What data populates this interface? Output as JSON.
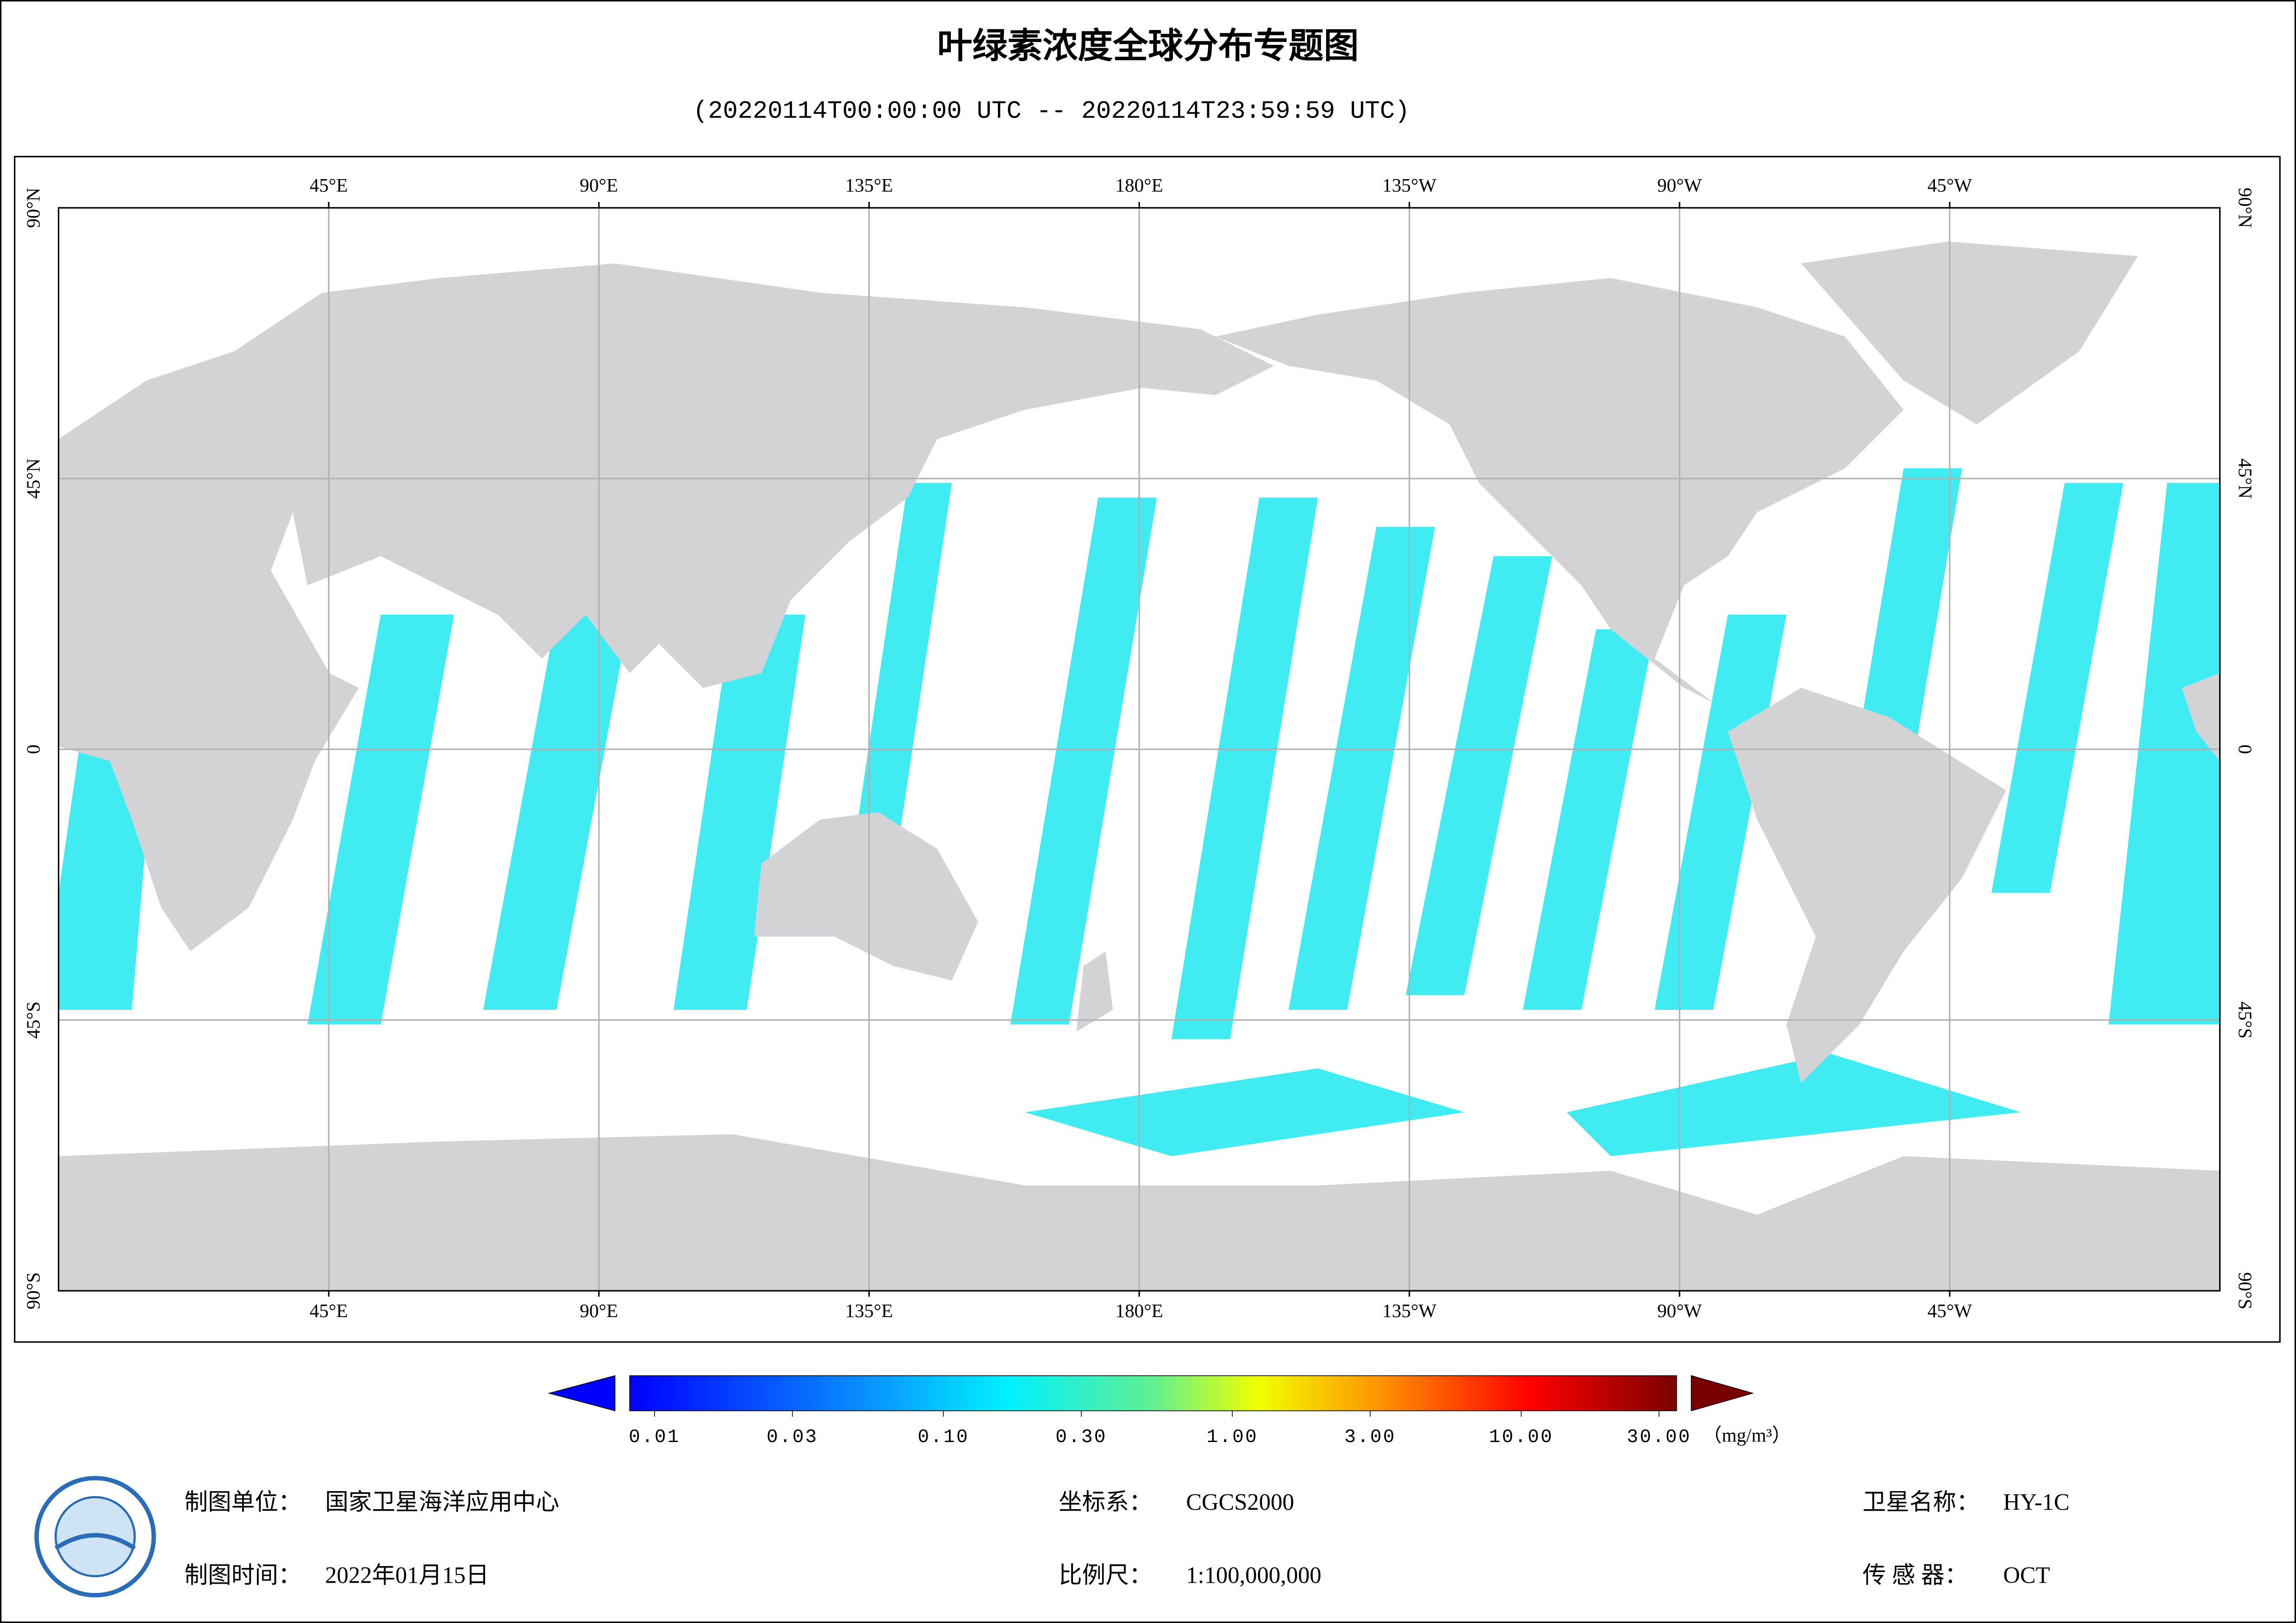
{
  "title": "叶绿素浓度全球分布专题图",
  "subtitle": "(20220114T00:00:00 UTC -- 20220114T23:59:59 UTC)",
  "map": {
    "lon_ticks": [
      {
        "value": 45,
        "label": "45°E"
      },
      {
        "value": 90,
        "label": "90°E"
      },
      {
        "value": 135,
        "label": "135°E"
      },
      {
        "value": 180,
        "label": "180°E"
      },
      {
        "value": -135,
        "label": "135°W"
      },
      {
        "value": -90,
        "label": "90°W"
      },
      {
        "value": -45,
        "label": "45°W"
      }
    ],
    "lat_ticks": [
      {
        "value": 90,
        "label": "90°N"
      },
      {
        "value": 45,
        "label": "45°N"
      },
      0,
      {
        "value": -45,
        "label": "45°S"
      },
      {
        "value": -90,
        "label": "90°S"
      }
    ]
  },
  "colorbar": {
    "scale": "log",
    "range": [
      0.01,
      30
    ],
    "ticks": [
      0.01,
      0.03,
      {
        "value": 0.1,
        "label": "0.10"
      },
      {
        "value": 0.3,
        "label": "0.30"
      },
      {
        "value": 1,
        "label": "1.00"
      },
      {
        "value": 3,
        "label": "3.00"
      },
      {
        "value": 10,
        "label": "10.00"
      },
      {
        "value": 30,
        "label": "30.00"
      }
    ],
    "unit": "（mg/m³）"
  },
  "footer": {
    "unit_label": "制图单位：",
    "unit": "国家卫星海洋应用中心",
    "date_label": "制图时间：",
    "date": "2022年01月15日",
    "crs_label": "坐标系：",
    "crs": "CGCS2000",
    "scale_label": "比例尺：",
    "scale": "1:100,000,000",
    "satellite_label": "卫星名称：",
    "satellite": "HY-1C",
    "sensor_label": "传 感 器：",
    "sensor": "OCT"
  }
}
